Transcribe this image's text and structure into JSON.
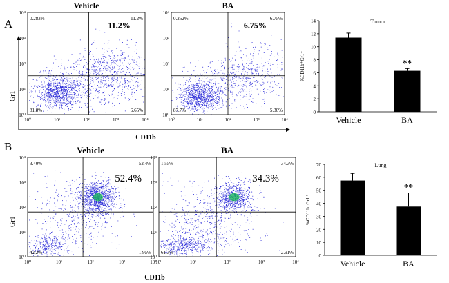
{
  "panels": [
    {
      "letter": "A",
      "x_axis_label": "CD11b",
      "y_axis_label": "Gr1"
    },
    {
      "letter": "B",
      "x_axis_label": "CD11b",
      "y_axis_label": "Gr1"
    }
  ],
  "flow_plots": [
    {
      "id": "A-Vehicle",
      "title": "Vehicle",
      "highlight": "11.2%",
      "quadrants": {
        "top_left": "0.283%",
        "top_right": "11.2%",
        "bottom_left": "81.8%",
        "bottom_right": "6.65%"
      },
      "x_ticks": [
        "10⁰",
        "10¹",
        "10²",
        "10³",
        "10⁴"
      ],
      "y_ticks": [
        "10⁰",
        "10¹",
        "10²",
        "10³",
        "10⁴"
      ]
    },
    {
      "id": "A-BA",
      "title": "BA",
      "highlight": "6.75%",
      "quadrants": {
        "top_left": "0.262%",
        "top_right": "6.75%",
        "bottom_left": "87.7%",
        "bottom_right": "5.30%"
      },
      "x_ticks": [
        "10⁰",
        "10¹",
        "10²",
        "10³",
        "10⁴"
      ],
      "y_ticks": [
        "10⁰",
        "10¹",
        "10²",
        "10³",
        "10⁴"
      ]
    },
    {
      "id": "B-Vehicle",
      "title": "Vehicle",
      "highlight": "52.4%",
      "quadrants": {
        "top_left": "3.40%",
        "top_right": "52.4%",
        "bottom_left": "42.2%",
        "bottom_right": "1.95%"
      },
      "x_ticks": [
        "10⁰",
        "10¹",
        "10²",
        "10³",
        "10⁴"
      ],
      "y_ticks": [
        "10⁰",
        "10¹",
        "10²",
        "10³",
        "10⁴"
      ]
    },
    {
      "id": "B-BA",
      "title": "BA",
      "highlight": "34.3%",
      "quadrants": {
        "top_left": "1.55%",
        "top_right": "34.3%",
        "bottom_left": "61.3%",
        "bottom_right": "2.91%"
      },
      "x_ticks": [
        "10⁰",
        "10¹",
        "10²",
        "10³",
        "10⁴"
      ],
      "y_ticks": [
        "10⁰",
        "10¹",
        "10²",
        "10³",
        "10⁴"
      ]
    }
  ],
  "chart_data": [
    {
      "type": "bar",
      "title": "Tumor",
      "categories": [
        "Vehicle",
        "BA"
      ],
      "values": [
        11.4,
        6.3
      ],
      "errors": [
        0.7,
        0.35
      ],
      "ylabel": "%CD11b⁺Gr1⁺",
      "ylim": [
        0,
        14
      ],
      "yticks": [
        "0",
        "2",
        "4",
        "6",
        "8",
        "10",
        "12",
        "14"
      ],
      "annotation": "**"
    },
    {
      "type": "bar",
      "title": "Lung",
      "categories": [
        "Vehicle",
        "BA"
      ],
      "values": [
        57.5,
        37.5
      ],
      "errors": [
        5.5,
        10.5
      ],
      "ylabel": "%CD11b⁺Gr1⁺",
      "ylim": [
        0,
        70
      ],
      "yticks": [
        "0",
        "10",
        "20",
        "30",
        "40",
        "50",
        "60",
        "70"
      ],
      "annotation": "**"
    }
  ],
  "colors": {
    "dots": "#2a2ad8",
    "dense": "#16b35a",
    "bar": "#000000"
  }
}
